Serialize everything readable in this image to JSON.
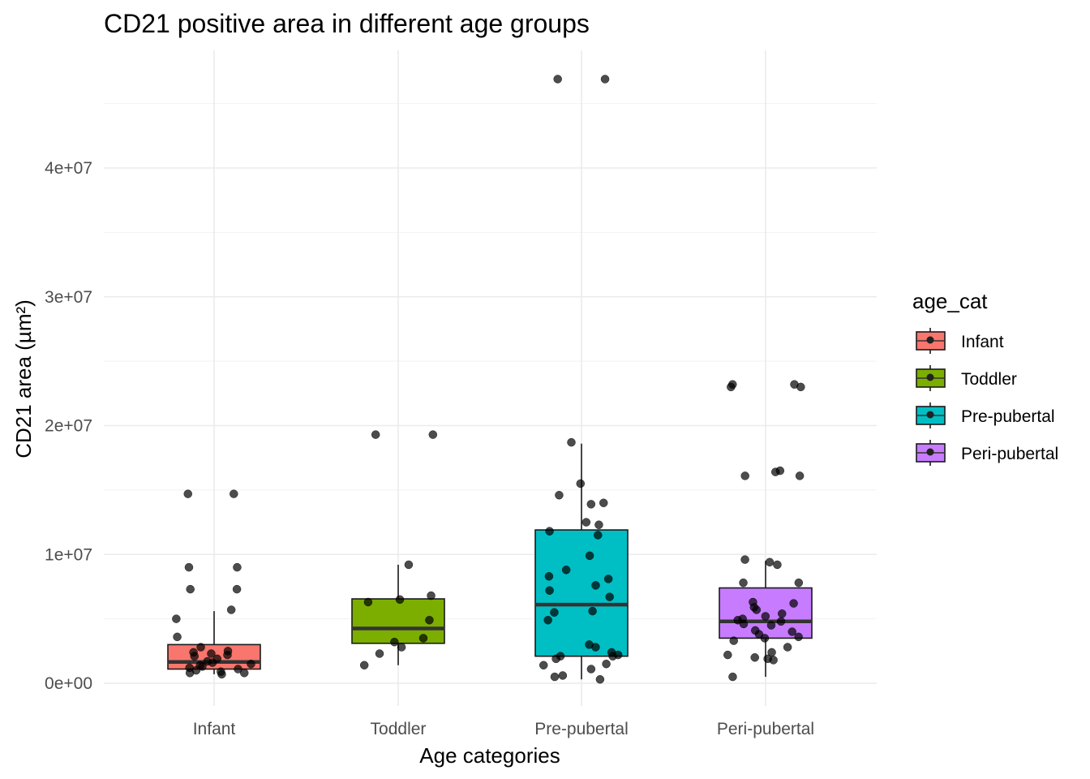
{
  "chart_data": {
    "type": "boxplot",
    "title": "CD21 positive area in different age groups",
    "xlabel": "Age categories",
    "ylabel": "CD21 area (µm²)",
    "ylim": [
      -1500000,
      49000000
    ],
    "y_ticks": [
      0,
      10000000,
      20000000,
      30000000,
      40000000
    ],
    "y_tick_labels": [
      "0e+00",
      "1e+07",
      "2e+07",
      "3e+07",
      "4e+07"
    ],
    "grid": true,
    "legend": {
      "title": "age_cat",
      "position": "right"
    },
    "categories": [
      "Infant",
      "Toddler",
      "Pre-pubertal",
      "Peri-pubertal"
    ],
    "colors": [
      "#F8766D",
      "#7CAE00",
      "#00BFC4",
      "#C77CFF"
    ],
    "boxes": [
      {
        "category": "Infant",
        "whisker_low": 700000,
        "q1": 1100000,
        "median": 1650000,
        "q3": 3000000,
        "whisker_high": 5600000,
        "outliers": [
          7300000,
          9000000,
          14700000
        ]
      },
      {
        "category": "Toddler",
        "whisker_low": 1400000,
        "q1": 3100000,
        "median": 4250000,
        "q3": 6550000,
        "whisker_high": 9200000,
        "outliers": [
          19300000
        ]
      },
      {
        "category": "Pre-pubertal",
        "whisker_low": 300000,
        "q1": 2100000,
        "median": 6100000,
        "q3": 11900000,
        "whisker_high": 18600000,
        "outliers": [
          46900000
        ]
      },
      {
        "category": "Peri-pubertal",
        "whisker_low": 500000,
        "q1": 3500000,
        "median": 4800000,
        "q3": 7400000,
        "whisker_high": 9500000,
        "outliers": [
          16100000,
          16500000,
          23000000,
          23200000
        ]
      }
    ],
    "jitter_points": [
      {
        "category": "Infant",
        "values": [
          14700000,
          14700000,
          9000000,
          9000000,
          7300000,
          7300000,
          5700000,
          5000000,
          3600000,
          2800000,
          2500000,
          2400000,
          2300000,
          2200000,
          2100000,
          1900000,
          1700000,
          1600000,
          1500000,
          1400000,
          1300000,
          1200000,
          1100000,
          1000000,
          900000,
          800000,
          800000,
          700000
        ]
      },
      {
        "category": "Toddler",
        "values": [
          19300000,
          19300000,
          9200000,
          6800000,
          6500000,
          6300000,
          4900000,
          3500000,
          3200000,
          2800000,
          2300000,
          1400000
        ]
      },
      {
        "category": "Pre-pubertal",
        "values": [
          46900000,
          46900000,
          18700000,
          15500000,
          14600000,
          14000000,
          13900000,
          12500000,
          12300000,
          11800000,
          11500000,
          9900000,
          8800000,
          8300000,
          8100000,
          7600000,
          7200000,
          6700000,
          5600000,
          5500000,
          4900000,
          3000000,
          2800000,
          2400000,
          2200000,
          2100000,
          2100000,
          1900000,
          1500000,
          1400000,
          1100000,
          600000,
          500000,
          300000
        ]
      },
      {
        "category": "Peri-pubertal",
        "values": [
          23200000,
          23200000,
          23000000,
          23000000,
          16500000,
          16400000,
          16100000,
          16100000,
          9600000,
          9400000,
          9200000,
          7800000,
          7800000,
          6300000,
          6200000,
          5900000,
          5700000,
          5400000,
          5200000,
          5000000,
          4900000,
          4800000,
          4600000,
          4500000,
          4100000,
          4000000,
          3800000,
          3600000,
          3500000,
          3300000,
          2800000,
          2400000,
          2200000,
          2000000,
          1900000,
          1800000,
          500000
        ]
      }
    ]
  }
}
